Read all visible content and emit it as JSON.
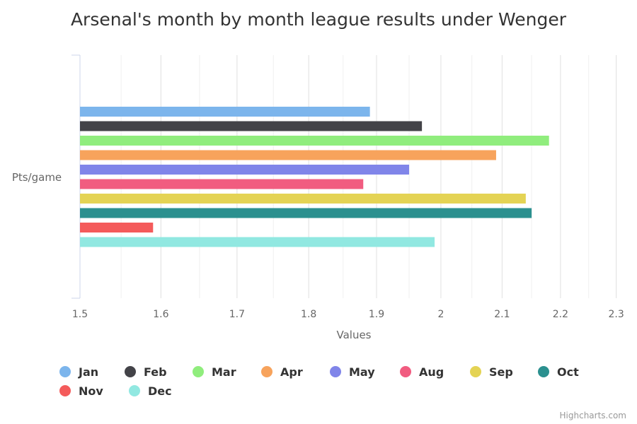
{
  "chart_data": {
    "type": "bar",
    "title": "Arsenal's month by month league results under Wenger",
    "xlabel": "Values",
    "ylabel": "Pts/game",
    "x_scale": "log",
    "xlim": [
      1.5,
      2.32
    ],
    "x_ticks": [
      "1.5",
      "1.6",
      "1.7",
      "1.8",
      "1.9",
      "2",
      "2.1",
      "2.2",
      "2.3"
    ],
    "grid": true,
    "legend_position": "bottom",
    "series": [
      {
        "name": "Jan",
        "value": 1.89,
        "color": "#7cb5ec"
      },
      {
        "name": "Feb",
        "value": 1.97,
        "color": "#434348"
      },
      {
        "name": "Mar",
        "value": 2.18,
        "color": "#90ed7d"
      },
      {
        "name": "Apr",
        "value": 2.09,
        "color": "#f7a35c"
      },
      {
        "name": "May",
        "value": 1.95,
        "color": "#8085e9"
      },
      {
        "name": "Aug",
        "value": 1.88,
        "color": "#f15c80"
      },
      {
        "name": "Sep",
        "value": 2.14,
        "color": "#e4d354"
      },
      {
        "name": "Oct",
        "value": 2.15,
        "color": "#2b908f"
      },
      {
        "name": "Nov",
        "value": 1.59,
        "color": "#f45b5b"
      },
      {
        "name": "Dec",
        "value": 1.99,
        "color": "#91e8e1"
      }
    ]
  },
  "credits": "Highcharts.com"
}
